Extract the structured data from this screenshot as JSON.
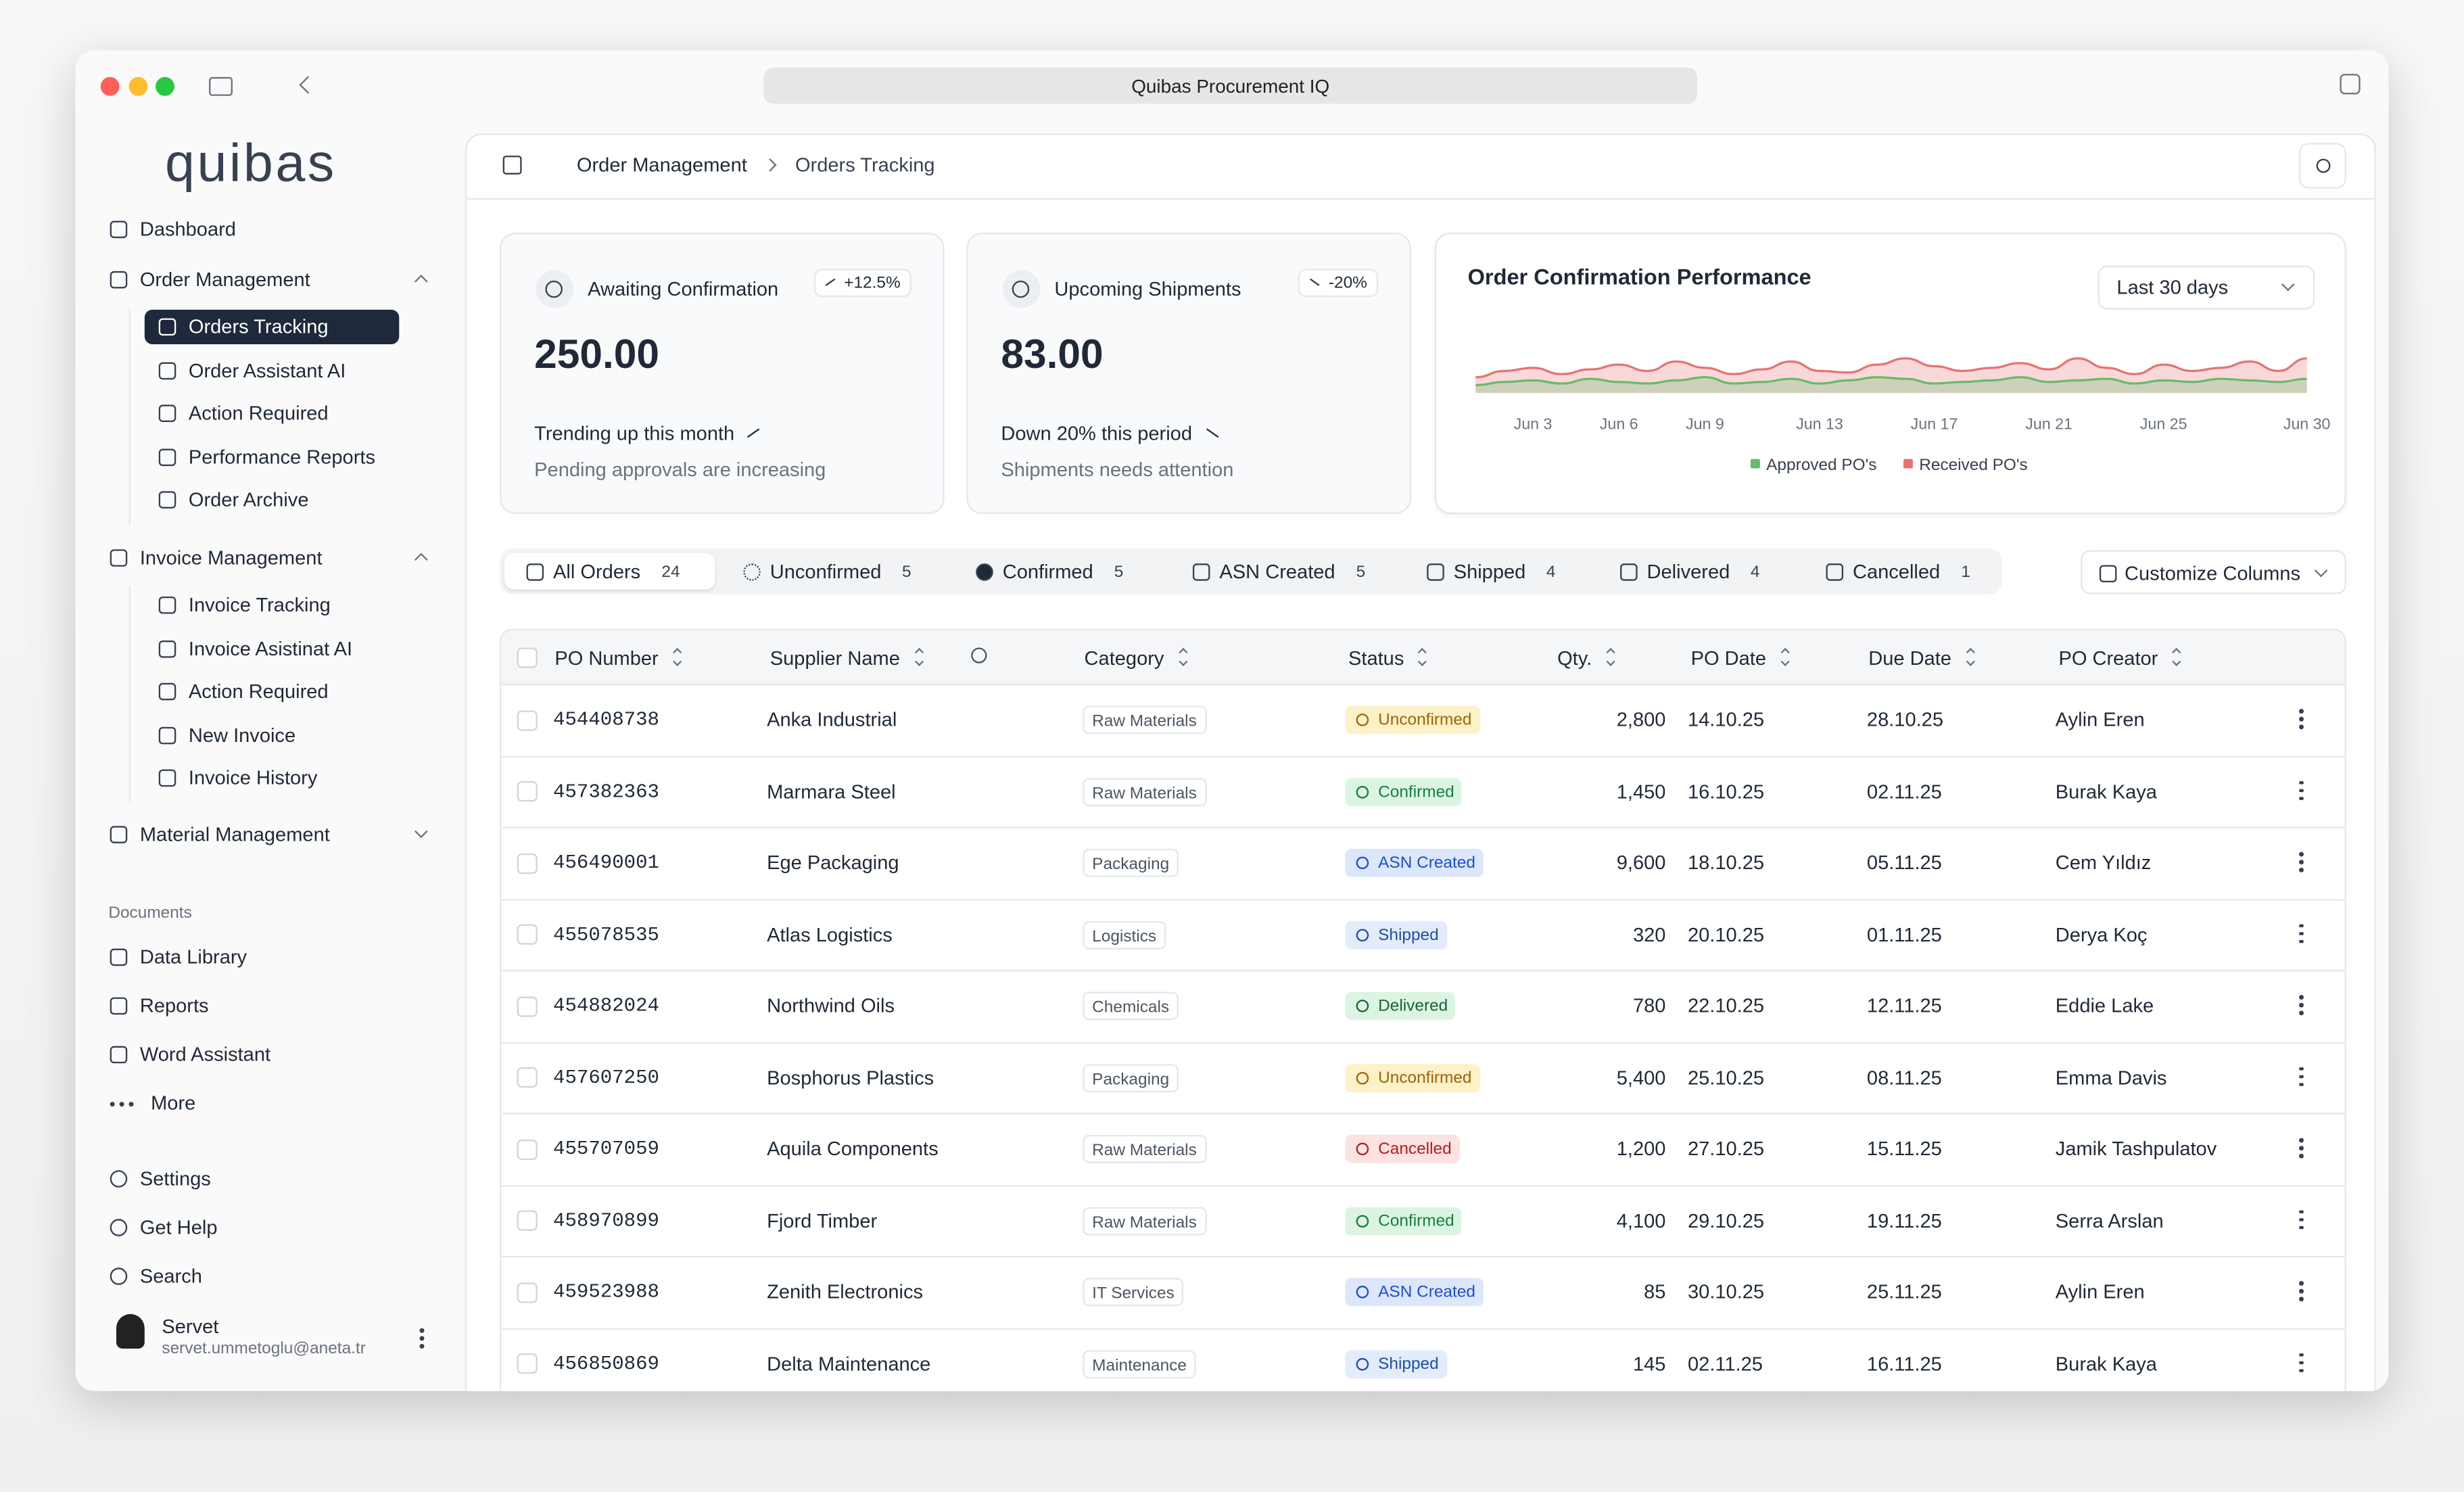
{
  "browser": {
    "address": "Quibas Procurement IQ"
  },
  "sidebar": {
    "logo": "quibas",
    "groups": [
      {
        "label": "Dashboard"
      },
      {
        "label": "Order Management",
        "items": [
          "Orders Tracking",
          "Order Assistant AI",
          "Action Required",
          "Performance Reports",
          "Order Archive"
        ]
      },
      {
        "label": "Invoice Management",
        "items": [
          "Invoice Tracking",
          "Invoice Asistinat AI",
          "Action Required",
          "New Invoice",
          "Invoice History"
        ]
      },
      {
        "label": "Material Management"
      }
    ],
    "documents": {
      "heading": "Documents",
      "items": [
        "Data Library",
        "Reports",
        "Word Assistant",
        "More"
      ]
    },
    "footer": [
      "Settings",
      "Get Help",
      "Search"
    ],
    "user": {
      "name": "Servet",
      "email": "servet.ummetoglu@aneta.tr"
    }
  },
  "breadcrumb": [
    "Order Management",
    "Orders Tracking"
  ],
  "cards": [
    {
      "title": "Awaiting Confirmation",
      "badge": "+12.5%",
      "value": "250.00",
      "trend": "Trending up this month",
      "note": "Pending approvals are increasing"
    },
    {
      "title": "Upcoming Shipments",
      "badge": "-20%",
      "value": "83.00",
      "trend": "Down 20% this period",
      "note": "Shipments needs attention"
    }
  ],
  "performance_chart": {
    "type": "area",
    "title": "Order Confirmation Performance",
    "range": "Last 30 days",
    "categories": [
      null,
      null,
      "Jun 3",
      null,
      null,
      "Jun 6",
      null,
      null,
      "Jun 9",
      null,
      null,
      null,
      "Jun 13",
      null,
      null,
      null,
      "Jun 17",
      null,
      null,
      null,
      "Jun 21",
      null,
      null,
      null,
      "Jun 25",
      null,
      null,
      null,
      null,
      "Jun 30"
    ],
    "series": [
      {
        "name": "Received PO's",
        "color": "#e57373",
        "values": [
          10,
          14,
          16,
          12,
          15,
          18,
          14,
          20,
          16,
          12,
          15,
          20,
          14,
          13,
          18,
          22,
          17,
          14,
          16,
          19,
          15,
          22,
          16,
          12,
          18,
          14,
          16,
          20,
          14,
          22
        ]
      },
      {
        "name": "Approved PO's",
        "color": "#66bb6a",
        "values": [
          5,
          7,
          8,
          6,
          9,
          7,
          6,
          8,
          10,
          6,
          7,
          9,
          6,
          8,
          10,
          9,
          6,
          7,
          8,
          10,
          7,
          8,
          9,
          6,
          8,
          7,
          9,
          8,
          7,
          9
        ]
      }
    ]
  },
  "tabs": [
    {
      "label": "All Orders",
      "count": 24
    },
    {
      "label": "Unconfirmed",
      "count": 5
    },
    {
      "label": "Confirmed",
      "count": 5
    },
    {
      "label": "ASN Created",
      "count": 5
    },
    {
      "label": "Shipped",
      "count": 4
    },
    {
      "label": "Delivered",
      "count": 4
    },
    {
      "label": "Cancelled",
      "count": 1
    }
  ],
  "customize_button": "Customize Columns",
  "table": {
    "columns": [
      "PO Number",
      "Supplier Name",
      "Category",
      "Status",
      "Qty.",
      "PO Date",
      "Due Date",
      "PO Creator"
    ],
    "rows": [
      [
        "454408738",
        "Anka Industrial",
        "Raw Materials",
        "Unconfirmed",
        "2,800",
        "14.10.25",
        "28.10.25",
        "Aylin Eren"
      ],
      [
        "457382363",
        "Marmara Steel",
        "Raw Materials",
        "Confirmed",
        "1,450",
        "16.10.25",
        "02.11.25",
        "Burak Kaya"
      ],
      [
        "456490001",
        "Ege Packaging",
        "Packaging",
        "ASN Created",
        "9,600",
        "18.10.25",
        "05.11.25",
        "Cem Yıldız"
      ],
      [
        "455078535",
        "Atlas Logistics",
        "Logistics",
        "Shipped",
        "320",
        "20.10.25",
        "01.11.25",
        "Derya Koç"
      ],
      [
        "454882024",
        "Northwind Oils",
        "Chemicals",
        "Delivered",
        "780",
        "22.10.25",
        "12.11.25",
        "Eddie Lake"
      ],
      [
        "457607250",
        "Bosphorus Plastics",
        "Packaging",
        "Unconfirmed",
        "5,400",
        "25.10.25",
        "08.11.25",
        "Emma Davis"
      ],
      [
        "455707059",
        "Aquila Components",
        "Raw Materials",
        "Cancelled",
        "1,200",
        "27.10.25",
        "15.11.25",
        "Jamik Tashpulatov"
      ],
      [
        "458970899",
        "Fjord Timber",
        "Raw Materials",
        "Confirmed",
        "4,100",
        "29.10.25",
        "19.11.25",
        "Serra Arslan"
      ],
      [
        "459523988",
        "Zenith Electronics",
        "IT Services",
        "ASN Created",
        "85",
        "30.10.25",
        "25.11.25",
        "Aylin Eren"
      ],
      [
        "456850869",
        "Delta Maintenance",
        "Maintenance",
        "Shipped",
        "145",
        "02.11.25",
        "16.11.25",
        "Burak Kaya"
      ]
    ]
  }
}
